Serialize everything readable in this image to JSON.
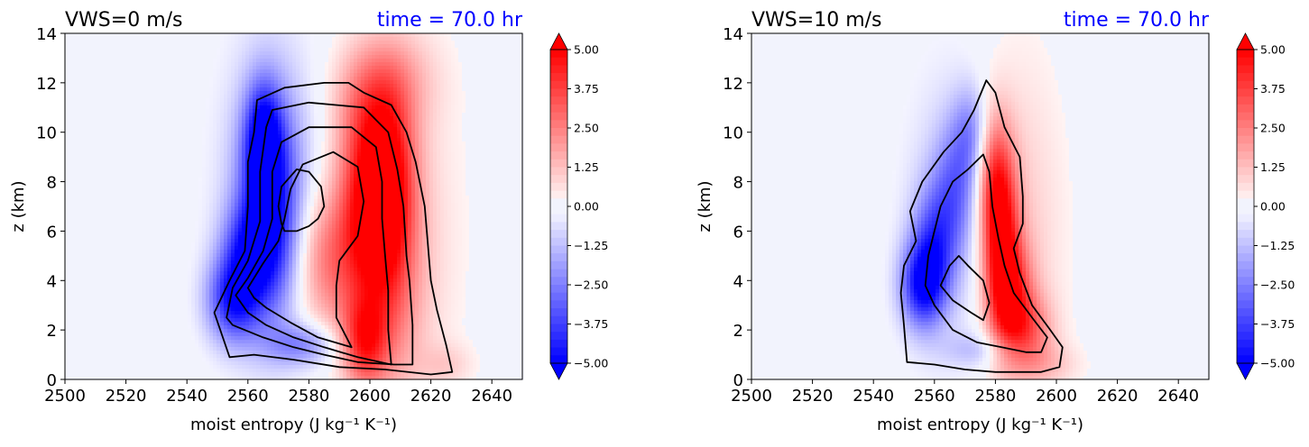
{
  "figure": {
    "colorbar_ticks": [
      "5.00",
      "3.75",
      "2.50",
      "1.25",
      "0.00",
      "−1.25",
      "−2.50",
      "−3.75",
      "−5.00"
    ],
    "colors": {
      "positive": "#ff0000",
      "negative": "#0000ff",
      "title_right": "#0000ff",
      "contour": "#000000"
    }
  },
  "chart_data": [
    {
      "type": "contour",
      "title_left": "VWS=0 m/s",
      "title_right": "time = 70.0 hr",
      "xlabel": "moist entropy",
      "xlabel_units": "(J kg⁻¹ K⁻¹)",
      "ylabel": "z (km)",
      "xlim": [
        2500,
        2650
      ],
      "ylim": [
        0,
        14
      ],
      "xticks": [
        "2500",
        "2520",
        "2540",
        "2560",
        "2580",
        "2600",
        "2620",
        "2640"
      ],
      "yticks": [
        "0",
        "2",
        "4",
        "6",
        "8",
        "10",
        "12",
        "14"
      ],
      "colorbar_range": [
        -5,
        5
      ],
      "contours": [
        [
          [
            2554,
            0.9
          ],
          [
            2549,
            2.7
          ],
          [
            2554,
            4.0
          ],
          [
            2559,
            5.2
          ],
          [
            2560,
            7.0
          ],
          [
            2560,
            8.8
          ],
          [
            2562,
            10.0
          ],
          [
            2563,
            11.3
          ],
          [
            2572,
            11.8
          ],
          [
            2585,
            12.0
          ],
          [
            2593,
            12.0
          ],
          [
            2598,
            11.6
          ],
          [
            2607,
            11.1
          ],
          [
            2612,
            10.0
          ],
          [
            2615,
            8.8
          ],
          [
            2618,
            7.0
          ],
          [
            2619,
            5.5
          ],
          [
            2620,
            4.0
          ],
          [
            2622,
            2.8
          ],
          [
            2625,
            1.4
          ],
          [
            2627,
            0.3
          ],
          [
            2620,
            0.2
          ],
          [
            2605,
            0.4
          ],
          [
            2590,
            0.5
          ],
          [
            2575,
            0.8
          ],
          [
            2562,
            1.0
          ],
          [
            2554,
            0.9
          ]
        ],
        [
          [
            2553,
            2.5
          ],
          [
            2555,
            3.7
          ],
          [
            2560,
            4.8
          ],
          [
            2564,
            6.4
          ],
          [
            2564,
            8.4
          ],
          [
            2566,
            10.2
          ],
          [
            2568,
            10.9
          ],
          [
            2580,
            11.2
          ],
          [
            2598,
            11.0
          ],
          [
            2606,
            10.0
          ],
          [
            2609,
            8.5
          ],
          [
            2611,
            7.0
          ],
          [
            2612,
            5.0
          ],
          [
            2613,
            4.0
          ],
          [
            2614,
            2.2
          ],
          [
            2614,
            0.6
          ],
          [
            2608,
            0.6
          ],
          [
            2596,
            0.7
          ],
          [
            2585,
            1.0
          ],
          [
            2575,
            1.3
          ],
          [
            2565,
            1.7
          ],
          [
            2555,
            2.2
          ],
          [
            2553,
            2.5
          ]
        ],
        [
          [
            2556,
            3.4
          ],
          [
            2560,
            4.1
          ],
          [
            2565,
            5.2
          ],
          [
            2568,
            6.5
          ],
          [
            2568,
            8.4
          ],
          [
            2571,
            9.6
          ],
          [
            2580,
            10.2
          ],
          [
            2594,
            10.2
          ],
          [
            2602,
            9.4
          ],
          [
            2604,
            8.0
          ],
          [
            2604,
            6.5
          ],
          [
            2605,
            5.0
          ],
          [
            2606,
            3.6
          ],
          [
            2606,
            2.0
          ],
          [
            2607,
            0.6
          ],
          [
            2596,
            0.9
          ],
          [
            2585,
            1.3
          ],
          [
            2575,
            1.7
          ],
          [
            2566,
            2.2
          ],
          [
            2560,
            2.7
          ],
          [
            2556,
            3.4
          ]
        ],
        [
          [
            2560,
            3.7
          ],
          [
            2565,
            4.7
          ],
          [
            2570,
            5.6
          ],
          [
            2572,
            6.5
          ],
          [
            2574,
            7.7
          ],
          [
            2578,
            8.7
          ],
          [
            2588,
            9.2
          ],
          [
            2596,
            8.6
          ],
          [
            2598,
            7.2
          ],
          [
            2596,
            5.8
          ],
          [
            2590,
            4.8
          ],
          [
            2589,
            3.8
          ],
          [
            2589,
            2.5
          ],
          [
            2594,
            1.3
          ],
          [
            2583,
            1.7
          ],
          [
            2574,
            2.3
          ],
          [
            2566,
            2.9
          ],
          [
            2562,
            3.3
          ],
          [
            2560,
            3.7
          ]
        ],
        [
          [
            2571,
            6.3
          ],
          [
            2570,
            7.0
          ],
          [
            2571,
            7.8
          ],
          [
            2576,
            8.5
          ],
          [
            2580,
            8.4
          ],
          [
            2584,
            7.8
          ],
          [
            2585,
            7.0
          ],
          [
            2583,
            6.5
          ],
          [
            2580,
            6.2
          ],
          [
            2576,
            6.0
          ],
          [
            2572,
            6.0
          ],
          [
            2571,
            6.3
          ]
        ]
      ],
      "negative_field": [
        {
          "x": 2567,
          "z": 7.0,
          "sx": 7,
          "sz": 3.0,
          "a": -4.8
        },
        {
          "x": 2565,
          "z": 9.8,
          "sx": 4,
          "sz": 1.5,
          "a": -3.5
        },
        {
          "x": 2555,
          "z": 3.2,
          "sx": 6,
          "sz": 1.2,
          "a": -4.0
        },
        {
          "x": 2560,
          "z": 5.2,
          "sx": 6,
          "sz": 1.3,
          "a": -2.8
        },
        {
          "x": 2578,
          "z": 1.4,
          "sx": 8,
          "sz": 0.6,
          "a": -2.2
        },
        {
          "x": 2568,
          "z": 8.0,
          "sx": 14,
          "sz": 5.0,
          "a": -0.8
        }
      ],
      "positive_field": [
        {
          "x": 2600,
          "z": 7.2,
          "sx": 7,
          "sz": 2.5,
          "a": 4.2
        },
        {
          "x": 2607,
          "z": 8.3,
          "sx": 6,
          "sz": 2.5,
          "a": 3.0
        },
        {
          "x": 2586,
          "z": 4.8,
          "sx": 8,
          "sz": 2.0,
          "a": 2.6
        },
        {
          "x": 2605,
          "z": 3.5,
          "sx": 8,
          "sz": 3.0,
          "a": 2.2
        },
        {
          "x": 2598,
          "z": 1.5,
          "sx": 5,
          "sz": 1.2,
          "a": 3.3
        },
        {
          "x": 2598,
          "z": 11.0,
          "sx": 8,
          "sz": 1.8,
          "a": 1.6
        },
        {
          "x": 2608,
          "z": 12.2,
          "sx": 10,
          "sz": 1.4,
          "a": 1.2
        },
        {
          "x": 2613,
          "z": 6.0,
          "sx": 12,
          "sz": 5.0,
          "a": 0.8
        },
        {
          "x": 2625,
          "z": 0.6,
          "sx": 6,
          "sz": 0.6,
          "a": 0.8
        }
      ]
    },
    {
      "type": "contour",
      "title_left": "VWS=10 m/s",
      "title_right": "time = 70.0 hr",
      "xlabel": "moist entropy",
      "xlabel_units": "(J kg⁻¹ K⁻¹)",
      "ylabel": "z (km)",
      "xlim": [
        2500,
        2650
      ],
      "ylim": [
        0,
        14
      ],
      "xticks": [
        "2500",
        "2520",
        "2540",
        "2560",
        "2580",
        "2600",
        "2620",
        "2640"
      ],
      "yticks": [
        "0",
        "2",
        "4",
        "6",
        "8",
        "10",
        "12",
        "14"
      ],
      "colorbar_range": [
        -5,
        5
      ],
      "contours": [
        [
          [
            2551,
            0.7
          ],
          [
            2550,
            2.2
          ],
          [
            2549,
            3.5
          ],
          [
            2550,
            4.6
          ],
          [
            2554,
            5.6
          ],
          [
            2552,
            6.8
          ],
          [
            2556,
            8.0
          ],
          [
            2563,
            9.2
          ],
          [
            2569,
            10.0
          ],
          [
            2573,
            10.9
          ],
          [
            2577,
            12.1
          ],
          [
            2580,
            11.6
          ],
          [
            2583,
            10.2
          ],
          [
            2588,
            9.0
          ],
          [
            2589,
            7.4
          ],
          [
            2589,
            6.3
          ],
          [
            2586,
            5.3
          ],
          [
            2588,
            4.3
          ],
          [
            2592,
            3.0
          ],
          [
            2598,
            2.0
          ],
          [
            2602,
            1.3
          ],
          [
            2601,
            0.5
          ],
          [
            2595,
            0.3
          ],
          [
            2580,
            0.3
          ],
          [
            2570,
            0.4
          ],
          [
            2560,
            0.6
          ],
          [
            2551,
            0.7
          ]
        ],
        [
          [
            2560,
            3.0
          ],
          [
            2557,
            3.8
          ],
          [
            2558,
            5.0
          ],
          [
            2560,
            6.0
          ],
          [
            2562,
            7.0
          ],
          [
            2566,
            8.0
          ],
          [
            2571,
            8.5
          ],
          [
            2576,
            9.1
          ],
          [
            2578,
            8.4
          ],
          [
            2579,
            7.0
          ],
          [
            2581,
            5.7
          ],
          [
            2583,
            4.6
          ],
          [
            2586,
            3.5
          ],
          [
            2592,
            2.5
          ],
          [
            2597,
            1.7
          ],
          [
            2595,
            1.1
          ],
          [
            2590,
            1.1
          ],
          [
            2582,
            1.3
          ],
          [
            2574,
            1.5
          ],
          [
            2566,
            2.0
          ],
          [
            2560,
            3.0
          ]
        ],
        [
          [
            2562,
            3.8
          ],
          [
            2565,
            4.6
          ],
          [
            2568,
            5.0
          ],
          [
            2571,
            4.6
          ],
          [
            2576,
            4.0
          ],
          [
            2578,
            3.1
          ],
          [
            2576,
            2.4
          ],
          [
            2572,
            2.7
          ],
          [
            2566,
            3.2
          ],
          [
            2562,
            3.8
          ]
        ]
      ],
      "negative_field": [
        {
          "x": 2556,
          "z": 3.8,
          "sx": 5,
          "sz": 1.2,
          "a": -4.2
        },
        {
          "x": 2560,
          "z": 5.5,
          "sx": 5,
          "sz": 1.6,
          "a": -2.8
        },
        {
          "x": 2567,
          "z": 7.8,
          "sx": 5,
          "sz": 1.8,
          "a": -2.2
        },
        {
          "x": 2572,
          "z": 10.0,
          "sx": 4,
          "sz": 1.3,
          "a": -1.8
        },
        {
          "x": 2565,
          "z": 6.5,
          "sx": 11,
          "sz": 4.5,
          "a": -0.9
        },
        {
          "x": 2575,
          "z": 1.2,
          "sx": 8,
          "sz": 0.5,
          "a": -1.2
        }
      ],
      "positive_field": [
        {
          "x": 2582,
          "z": 5.8,
          "sx": 4,
          "sz": 2.5,
          "a": 4.2
        },
        {
          "x": 2585,
          "z": 3.5,
          "sx": 5,
          "sz": 1.5,
          "a": 3.2
        },
        {
          "x": 2590,
          "z": 2.0,
          "sx": 6,
          "sz": 1.0,
          "a": 2.4
        },
        {
          "x": 2579,
          "z": 8.0,
          "sx": 4,
          "sz": 2.0,
          "a": 2.4
        },
        {
          "x": 2588,
          "z": 6.0,
          "sx": 10,
          "sz": 5.0,
          "a": 1.0
        },
        {
          "x": 2596,
          "z": 0.6,
          "sx": 8,
          "sz": 0.6,
          "a": 1.0
        }
      ]
    }
  ]
}
